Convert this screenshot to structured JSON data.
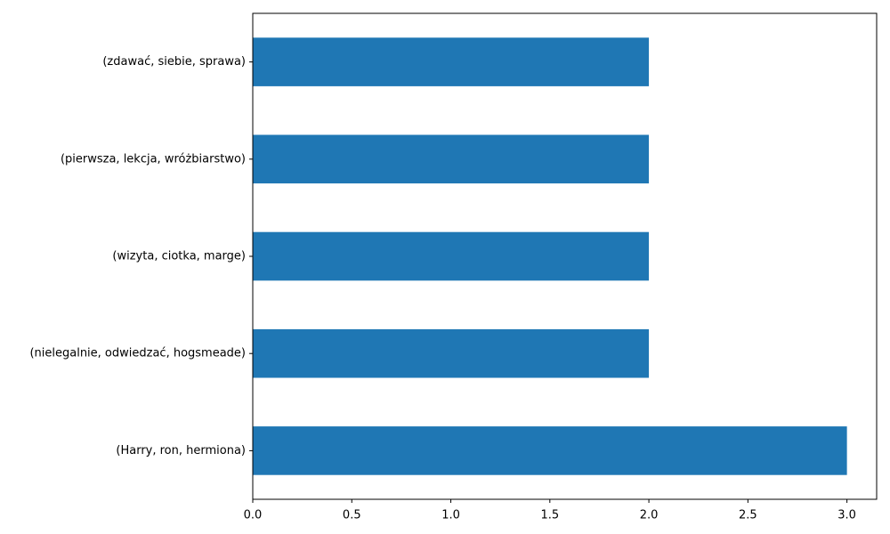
{
  "chart_data": {
    "type": "bar",
    "orientation": "horizontal",
    "categories": [
      "(zdawać, siebie, sprawa)",
      "(pierwsza, lekcja, wróżbiarstwo)",
      "(wizyta, ciotka, marge)",
      "(nielegalnie, odwiedzać, hogsmeade)",
      "(Harry, ron, hermiona)"
    ],
    "values": [
      2,
      2,
      2,
      2,
      3
    ],
    "xlim": [
      0,
      3.15
    ],
    "xticks": [
      "0.0",
      "0.5",
      "1.0",
      "1.5",
      "2.0",
      "2.5",
      "3.0"
    ],
    "title": "",
    "xlabel": "",
    "ylabel": "",
    "grid": false,
    "bar_color": "#1f77b4"
  }
}
